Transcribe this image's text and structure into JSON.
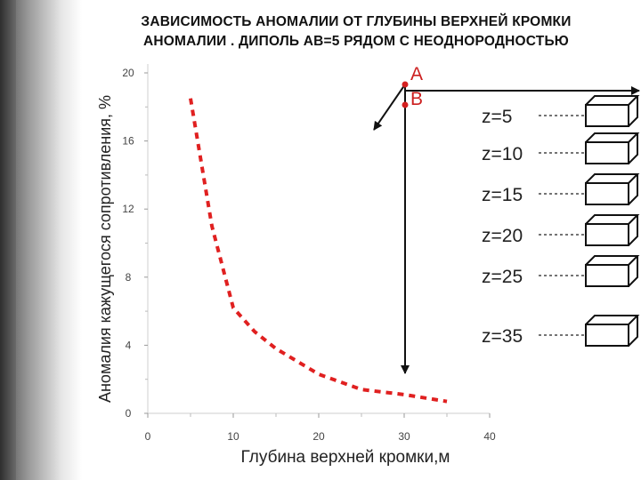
{
  "title": {
    "line1": "ЗАВИСИМОСТЬ АНОМАЛИИ  ОТ ГЛУБИНЫ  ВЕРХНЕЙ   КРОМКИ",
    "line2": "АНОМАЛИИ . ДИПОЛЬ АВ=5 РЯДОМ С НЕОДНОРОДНОСТЬЮ"
  },
  "colors": {
    "curve": "#e02020",
    "points": "#d42020",
    "ink": "#111111"
  },
  "chart_data": {
    "type": "line",
    "title": "ЗАВИСИМОСТЬ АНОМАЛИИ  ОТ ГЛУБИНЫ  ВЕРХНЕЙ   КРОМКИ АНОМАЛИИ . ДИПОЛЬ АВ=5 РЯДОМ С НЕОДНОРОДНОСТЬЮ",
    "xlabel": "Глубина верхней кромки,м",
    "ylabel": "Аномалия кажущегося  сопротивления, %",
    "xlim": [
      0,
      40
    ],
    "ylim": [
      0,
      20
    ],
    "x_ticks": [
      "0",
      "10",
      "20",
      "30",
      "40"
    ],
    "y_ticks": [
      "0",
      "4",
      "8",
      "12",
      "16",
      "20"
    ],
    "grid": false,
    "series": [
      {
        "style": "dashed",
        "x": [
          5,
          7.5,
          10,
          12.5,
          15,
          20,
          25,
          30,
          35
        ],
        "y": [
          18.5,
          11,
          6.2,
          4.8,
          3.8,
          2.3,
          1.4,
          1.1,
          0.7
        ]
      }
    ]
  },
  "schematic": {
    "point_a": "A",
    "point_b": "B",
    "depth_labels": [
      "z=5",
      "z=10",
      "z=15",
      "z=20",
      "z=25",
      "z=35"
    ]
  }
}
